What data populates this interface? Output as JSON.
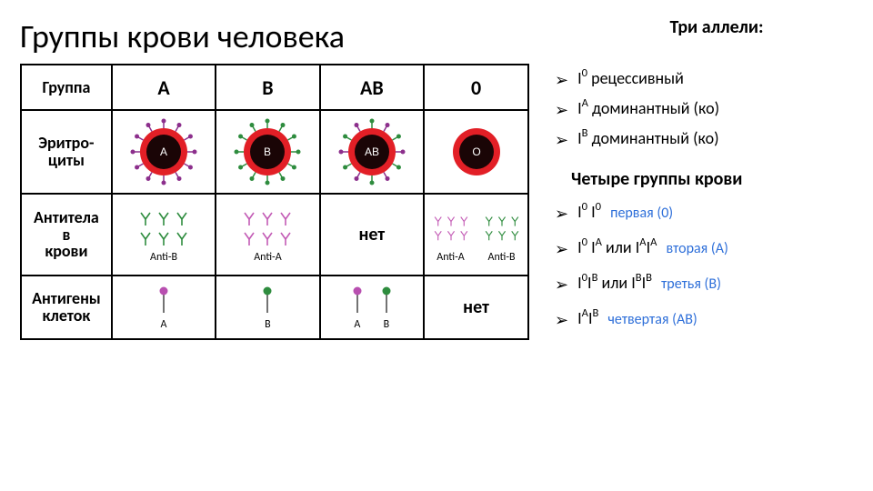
{
  "title": "Группы крови человека",
  "alleles_heading": "Три аллели:",
  "alleles": [
    {
      "symbol_base": "I",
      "symbol_sup": "0",
      "desc": "рецессивный"
    },
    {
      "symbol_base": "I",
      "symbol_sup": "A",
      "desc": "доминантный (ко)"
    },
    {
      "symbol_base": "I",
      "symbol_sup": "B",
      "desc": "доминантный (ко)"
    }
  ],
  "groups_heading": "Четыре группы крови",
  "groups": [
    {
      "geno_html": "I<sup>0</sup> I<sup>0</sup>",
      "note": "первая (0)",
      "color": "#2e6fd9"
    },
    {
      "geno_html": "I<sup>0</sup> I<sup>A</sup> или I<sup>A</sup>I<sup>A</sup>",
      "note": "вторая (А)",
      "color": "#2e6fd9"
    },
    {
      "geno_html": "I<sup>0</sup>I<sup>B</sup> или I<sup>B</sup>I<sup>B</sup>",
      "note": "третья (В)",
      "color": "#2e6fd9"
    },
    {
      "geno_html": "I<sup>A</sup>I<sup>B</sup>",
      "note": "четвертая (АВ)",
      "color": "#2e6fd9"
    }
  ],
  "table": {
    "row_headers": [
      "Группа",
      "Эритро-\nциты",
      "Антитела в крови",
      "Антигены клеток"
    ],
    "columns": [
      "A",
      "B",
      "AB",
      "0"
    ],
    "erythrocytes": {
      "labels": [
        "A",
        "B",
        "AB",
        "O"
      ],
      "cell_center_color": "#1a0506",
      "cell_rim_color": "#e21f26",
      "antigen_a_color": "#8c2f8c",
      "antigen_b_color": "#2e8c3e",
      "background": "#ffffff"
    },
    "antibodies": {
      "cells": [
        {
          "items": [
            {
              "label": "Anti-B",
              "color": "#2e8c3e"
            }
          ]
        },
        {
          "items": [
            {
              "label": "Anti-A",
              "color": "#c35bb5"
            }
          ]
        },
        {
          "none_label": "нет"
        },
        {
          "items": [
            {
              "label": "Anti-A",
              "color": "#c35bb5"
            },
            {
              "label": "Anti-B",
              "color": "#2e8c3e"
            }
          ]
        }
      ]
    },
    "antigens": {
      "cells": [
        {
          "items": [
            {
              "label": "A",
              "color": "#b84fb0"
            }
          ]
        },
        {
          "items": [
            {
              "label": "B",
              "color": "#2e8c3e"
            }
          ]
        },
        {
          "items": [
            {
              "label": "A",
              "color": "#b84fb0"
            },
            {
              "label": "B",
              "color": "#2e8c3e"
            }
          ]
        },
        {
          "none_label": "нет"
        }
      ]
    }
  },
  "styling": {
    "page_bg": "#ffffff",
    "text_color": "#000000",
    "table_border_color": "#000000",
    "bullet_glyph": "➢",
    "title_fontsize": 36,
    "heading_fontsize": 20,
    "body_fontsize": 18
  }
}
